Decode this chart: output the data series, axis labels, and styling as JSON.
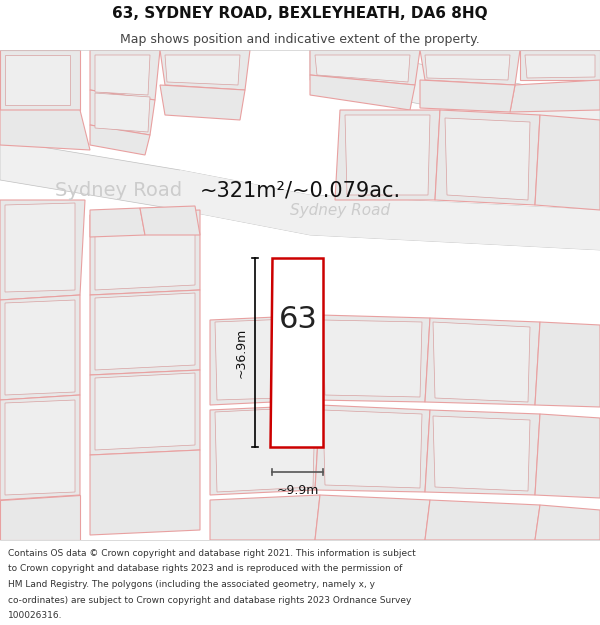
{
  "title": "63, SYDNEY ROAD, BEXLEYHEATH, DA6 8HQ",
  "subtitle": "Map shows position and indicative extent of the property.",
  "area_text": "~321m²/~0.079ac.",
  "label_63": "63",
  "dim_height": "~36.9m",
  "dim_width": "~9.9m",
  "street_label_1": "Sydney Road",
  "street_label_2": "Sydney Road",
  "footer_lines": [
    "Contains OS data © Crown copyright and database right 2021. This information is subject",
    "to Crown copyright and database rights 2023 and is reproduced with the permission of",
    "HM Land Registry. The polygons (including the associated geometry, namely x, y",
    "co-ordinates) are subject to Crown copyright and database rights 2023 Ordnance Survey",
    "100026316."
  ],
  "bg_color": "#ffffff",
  "map_bg": "#ffffff",
  "block_fill": "#e8e8e8",
  "block_edge": "#e8a0a0",
  "road_fill": "#ffffff",
  "road_edge": "#b0b0b0",
  "plot_fill": "#ffffff",
  "plot_edge": "#cc0000",
  "title_fontsize": 11,
  "subtitle_fontsize": 9,
  "area_fontsize": 15,
  "label_fontsize": 22,
  "dim_fontsize": 9,
  "street_fontsize_1": 14,
  "street_fontsize_2": 11,
  "footer_fontsize": 6.5,
  "street_color": "#cccccc",
  "dim_color": "#111111",
  "area_color": "#111111",
  "label_color": "#222222",
  "title_color": "#111111",
  "subtitle_color": "#444444",
  "footer_color": "#333333"
}
